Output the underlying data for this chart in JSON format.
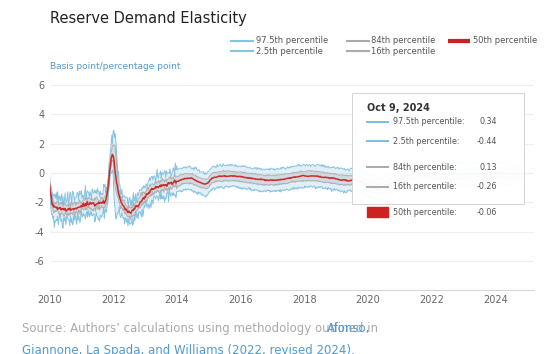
{
  "title": "Reserve Demand Elasticity",
  "ylabel": "Basis point/percentage point",
  "ylim": [
    -8,
    6
  ],
  "yticks": [
    -6,
    -4,
    -2,
    0,
    2,
    4,
    6
  ],
  "xlim": [
    2010.0,
    2025.2
  ],
  "xticks": [
    2010,
    2012,
    2014,
    2016,
    2018,
    2020,
    2022,
    2024
  ],
  "color_97_5": "#7ABDE0",
  "color_84": "#AAAAAA",
  "color_50": "#CC2222",
  "annotation_date": "Oct 9, 2024",
  "annotation_97_5": "0.34",
  "annotation_2_5": "-0.44",
  "annotation_84": "0.13",
  "annotation_16": "-0.26",
  "annotation_50": "-0.06",
  "source_text_gray": "Source: Authors’ calculations using methodology outlined in ",
  "source_text_blue1": "Afonso,",
  "source_text_blue2": "Giannone, La Spada, and Williams (2022, revised 2024).",
  "source_color": "#AAAAAA",
  "source_link_color": "#5599CC",
  "background_color": "#FFFFFF",
  "grid_color": "#E8E8E8"
}
